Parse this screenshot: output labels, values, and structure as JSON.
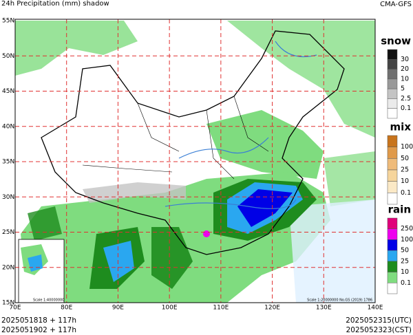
{
  "header": {
    "title": "24h Precipitation (mm) shadow",
    "model": "CMA-GFS"
  },
  "map": {
    "lat_labels": [
      "55N",
      "50N",
      "45N",
      "40N",
      "35N",
      "30N",
      "25N",
      "20N",
      "15N"
    ],
    "lon_labels": [
      "70E",
      "80E",
      "90E",
      "100E",
      "110E",
      "120E",
      "130E",
      "140E"
    ],
    "inset_scale": "Scale 1:40000000",
    "main_scale": "Scale 1:20000000 No.GS (2019) 1786"
  },
  "legend": [
    {
      "name": "snow",
      "levels": [
        30,
        20,
        10,
        5,
        2.5,
        0.1
      ],
      "colors": [
        "#111111",
        "#444444",
        "#707070",
        "#999999",
        "#c4c4c4",
        "#ebebeb",
        "#ffffff"
      ]
    },
    {
      "name": "mix",
      "levels": [
        100,
        50,
        25,
        10,
        0.1
      ],
      "colors": [
        "#c8741c",
        "#e09a4a",
        "#efbb7a",
        "#f6d59c",
        "#fbe9c6",
        "#ffffff"
      ]
    },
    {
      "name": "rain",
      "levels": [
        250,
        100,
        50,
        25,
        10,
        0.1
      ],
      "colors": [
        "#e0007a",
        "#ee00ee",
        "#0000e6",
        "#2aa7f0",
        "#1e8c1e",
        "#7fdc7f",
        "#ffffff"
      ]
    }
  ],
  "footer": {
    "init_utc": "2025051818 + 117h",
    "valid_utc": "2025052315(UTC)",
    "init_cst": "2025051902 + 117h",
    "valid_cst": "2025052323(CST)"
  }
}
